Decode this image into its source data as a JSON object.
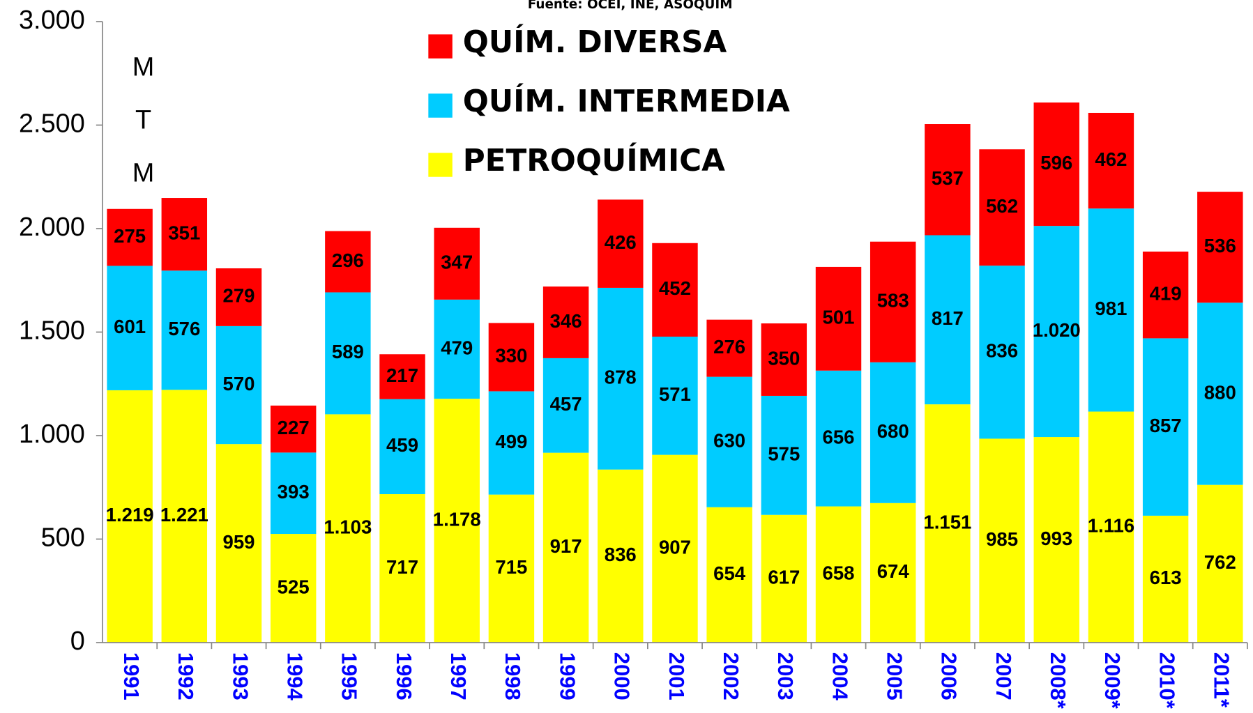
{
  "chart_data": {
    "type": "stacked_bar",
    "subtitle": "Fuente: OCEI, INE, ASOQUIM",
    "y_label": "MTM",
    "categories": [
      "1991",
      "1992",
      "1993",
      "1994",
      "1995",
      "1996",
      "1997",
      "1998",
      "1999",
      "2000",
      "2001",
      "2002",
      "2003",
      "2004",
      "2005",
      "2006",
      "2007",
      "2008*",
      "2009*",
      "2010*",
      "2011*"
    ],
    "series": [
      {
        "name": "PETROQUÍMICA",
        "color": "#ffff00",
        "values": [
          1219,
          1221,
          959,
          525,
          1103,
          717,
          1178,
          715,
          917,
          836,
          907,
          654,
          617,
          658,
          674,
          1151,
          985,
          993,
          1116,
          613,
          762
        ],
        "value_labels": [
          "1.219",
          "1.221",
          "959",
          "525",
          "1.103",
          "717",
          "1.178",
          "715",
          "917",
          "836",
          "907",
          "654",
          "617",
          "658",
          "674",
          "1.151",
          "985",
          "993",
          "1.116",
          "613",
          "762"
        ]
      },
      {
        "name": "QUÍM. INTERMEDIA",
        "color": "#00ccff",
        "values": [
          601,
          576,
          570,
          393,
          589,
          459,
          479,
          499,
          457,
          878,
          571,
          630,
          575,
          656,
          680,
          817,
          836,
          1020,
          981,
          857,
          880
        ],
        "value_labels": [
          "601",
          "576",
          "570",
          "393",
          "589",
          "459",
          "479",
          "499",
          "457",
          "878",
          "571",
          "630",
          "575",
          "656",
          "680",
          "817",
          "836",
          "1.020",
          "981",
          "857",
          "880"
        ]
      },
      {
        "name": "QUÍM. DIVERSA",
        "color": "#ff0000",
        "values": [
          275,
          351,
          279,
          227,
          296,
          217,
          347,
          330,
          346,
          426,
          452,
          276,
          350,
          501,
          583,
          537,
          562,
          596,
          462,
          419,
          536
        ],
        "value_labels": [
          "275",
          "351",
          "279",
          "227",
          "296",
          "217",
          "347",
          "330",
          "346",
          "426",
          "452",
          "276",
          "350",
          "501",
          "583",
          "537",
          "562",
          "596",
          "462",
          "419",
          "536"
        ]
      }
    ],
    "ylim": [
      0,
      3000
    ],
    "yticks": [
      0,
      500,
      {
        "value": 1000,
        "label": "1.000"
      },
      {
        "value": 1500,
        "label": "1.500"
      },
      {
        "value": 2000,
        "label": "2.000"
      },
      {
        "value": 2500,
        "label": "2.500"
      },
      {
        "value": 3000,
        "label": "3.000"
      }
    ]
  }
}
